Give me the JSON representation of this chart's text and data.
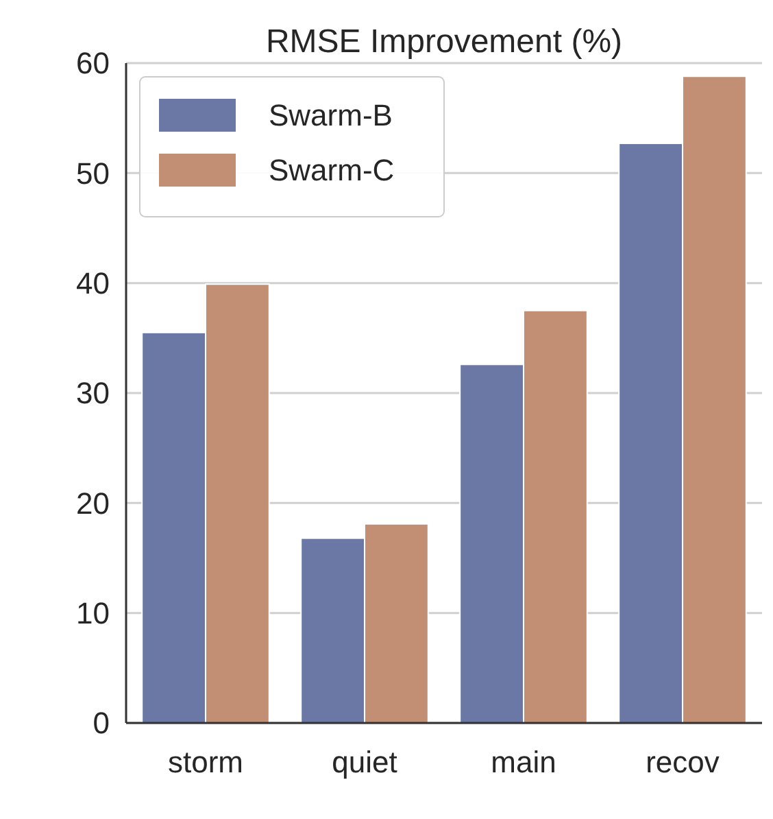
{
  "chart_data": {
    "type": "bar",
    "title": "RMSE Improvement (%)",
    "categories": [
      "storm",
      "quiet",
      "main",
      "recov"
    ],
    "series": [
      {
        "name": "Swarm-B",
        "color": "#6b78a6",
        "values": [
          35.5,
          16.8,
          32.6,
          52.7
        ]
      },
      {
        "name": "Swarm-C",
        "color": "#c28e74",
        "values": [
          39.9,
          18.1,
          37.5,
          58.8
        ]
      }
    ],
    "ylim": [
      0,
      60
    ],
    "yticks": [
      0,
      10,
      20,
      30,
      40,
      50,
      60
    ],
    "grid": "y",
    "legend": "top left"
  }
}
